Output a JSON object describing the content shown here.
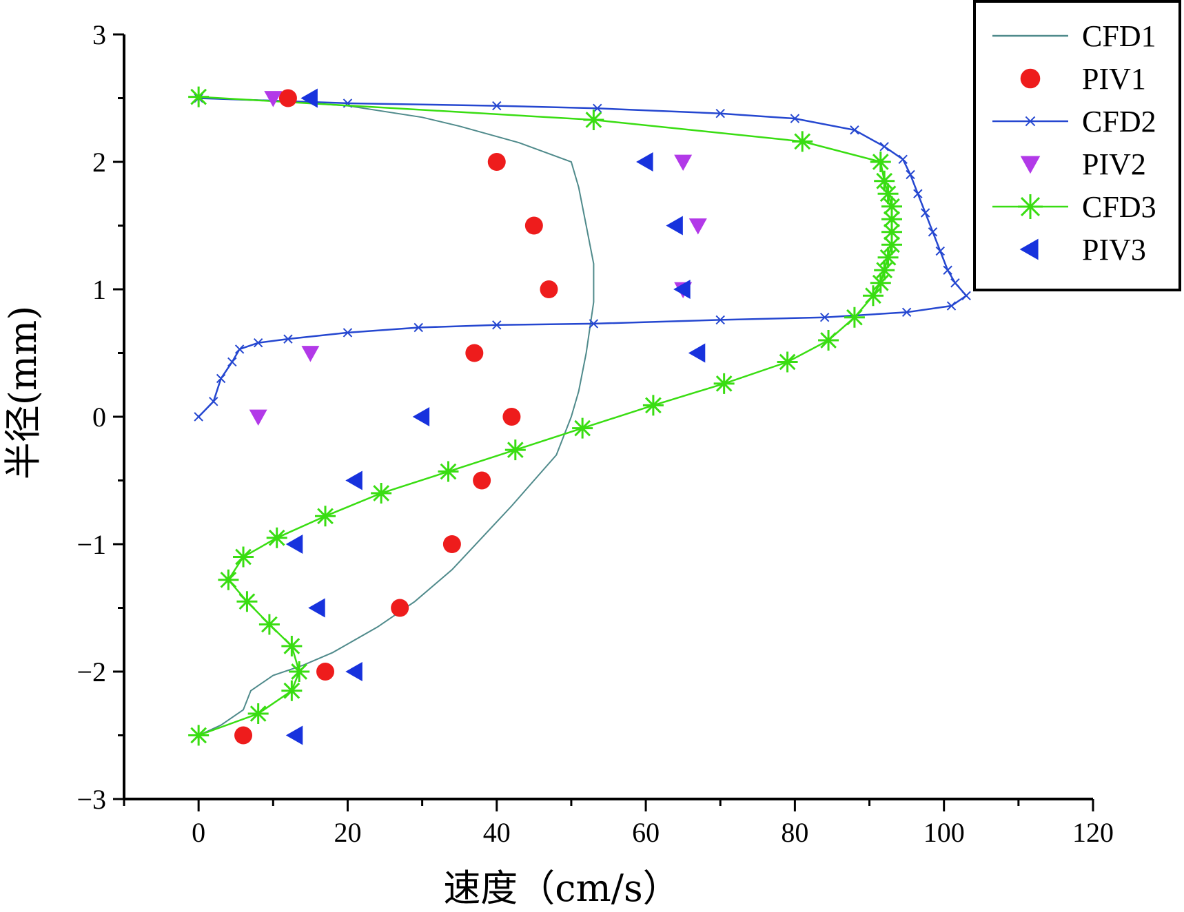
{
  "chart_data": {
    "type": "scatter",
    "title": "",
    "xlabel": "速度（cm/s）",
    "ylabel": "半径(mm)",
    "xlim": [
      -10,
      120
    ],
    "ylim": [
      -3,
      3
    ],
    "xticks": [
      0,
      20,
      40,
      60,
      80,
      100,
      120
    ],
    "yticks": [
      -3,
      -2,
      -1,
      0,
      1,
      2,
      3
    ],
    "xtick_labels": [
      "0",
      "20",
      "40",
      "60",
      "80",
      "100",
      "120"
    ],
    "ytick_labels": [
      "−3",
      "−2",
      "−1",
      "0",
      "1",
      "2",
      "3"
    ],
    "grid": false,
    "legend_position": "top-right",
    "series": [
      {
        "name": "CFD1",
        "kind": "line",
        "color": "#4f8a8b",
        "points": [
          [
            0,
            2.5
          ],
          [
            10,
            2.48
          ],
          [
            20,
            2.44
          ],
          [
            30,
            2.35
          ],
          [
            35,
            2.28
          ],
          [
            43,
            2.15
          ],
          [
            50,
            2.0
          ],
          [
            51,
            1.8
          ],
          [
            52,
            1.5
          ],
          [
            53,
            1.2
          ],
          [
            53,
            0.9
          ],
          [
            52.5,
            0.7
          ],
          [
            52,
            0.5
          ],
          [
            51,
            0.2
          ],
          [
            50,
            0.0
          ],
          [
            48,
            -0.3
          ],
          [
            45,
            -0.5
          ],
          [
            42,
            -0.7
          ],
          [
            38,
            -0.95
          ],
          [
            34,
            -1.2
          ],
          [
            29,
            -1.45
          ],
          [
            24,
            -1.65
          ],
          [
            18,
            -1.85
          ],
          [
            14,
            -1.95
          ],
          [
            10,
            -2.03
          ],
          [
            7,
            -2.15
          ],
          [
            6,
            -2.3
          ],
          [
            3,
            -2.42
          ],
          [
            0,
            -2.5
          ]
        ]
      },
      {
        "name": "PIV1",
        "kind": "scatter",
        "marker": "circle",
        "color": "#ee1c1c",
        "points": [
          [
            12,
            2.5
          ],
          [
            40,
            2.0
          ],
          [
            45,
            1.5
          ],
          [
            47,
            1.0
          ],
          [
            37,
            0.5
          ],
          [
            42,
            0.0
          ],
          [
            38,
            -0.5
          ],
          [
            34,
            -1.0
          ],
          [
            27,
            -1.5
          ],
          [
            17,
            -2.0
          ],
          [
            6,
            -2.5
          ]
        ]
      },
      {
        "name": "CFD2",
        "kind": "line-markers",
        "marker": "x",
        "color": "#2547d0",
        "points": [
          [
            0,
            2.5
          ],
          [
            20,
            2.46
          ],
          [
            40,
            2.44
          ],
          [
            53.5,
            2.42
          ],
          [
            70,
            2.38
          ],
          [
            80,
            2.34
          ],
          [
            88,
            2.25
          ],
          [
            92,
            2.12
          ],
          [
            94.5,
            2.02
          ],
          [
            95.5,
            1.9
          ],
          [
            96.5,
            1.75
          ],
          [
            97.5,
            1.6
          ],
          [
            98.5,
            1.45
          ],
          [
            99.5,
            1.3
          ],
          [
            100.5,
            1.15
          ],
          [
            101.5,
            1.05
          ],
          [
            103,
            0.95
          ],
          [
            101,
            0.87
          ],
          [
            95,
            0.82
          ],
          [
            84,
            0.78
          ],
          [
            70,
            0.76
          ],
          [
            53,
            0.73
          ],
          [
            40,
            0.72
          ],
          [
            29.5,
            0.7
          ],
          [
            20,
            0.66
          ],
          [
            12,
            0.61
          ],
          [
            8,
            0.58
          ],
          [
            5.5,
            0.53
          ],
          [
            4.5,
            0.43
          ],
          [
            3,
            0.3
          ],
          [
            2,
            0.12
          ],
          [
            0,
            0.0
          ]
        ]
      },
      {
        "name": "PIV2",
        "kind": "scatter",
        "marker": "triangle-down",
        "color": "#b239e8",
        "points": [
          [
            10,
            2.5
          ],
          [
            65,
            2.0
          ],
          [
            67,
            1.5
          ],
          [
            65,
            1.0
          ],
          [
            15,
            0.5
          ],
          [
            8,
            0.0
          ]
        ]
      },
      {
        "name": "CFD3",
        "kind": "line-markers",
        "marker": "asterisk",
        "color": "#39dd12",
        "points": [
          [
            0,
            2.51
          ],
          [
            53,
            2.33
          ],
          [
            81,
            2.16
          ],
          [
            91.5,
            2.0
          ],
          [
            92,
            1.85
          ],
          [
            92.5,
            1.75
          ],
          [
            93,
            1.65
          ],
          [
            93,
            1.55
          ],
          [
            93,
            1.45
          ],
          [
            93,
            1.35
          ],
          [
            92.5,
            1.25
          ],
          [
            92,
            1.15
          ],
          [
            91.5,
            1.05
          ],
          [
            90.5,
            0.95
          ],
          [
            88,
            0.78
          ],
          [
            84.5,
            0.6
          ],
          [
            79,
            0.43
          ],
          [
            70.5,
            0.26
          ],
          [
            61,
            0.09
          ],
          [
            51.5,
            -0.09
          ],
          [
            42.5,
            -0.26
          ],
          [
            33.5,
            -0.43
          ],
          [
            24.5,
            -0.6
          ],
          [
            17,
            -0.78
          ],
          [
            10.5,
            -0.95
          ],
          [
            6,
            -1.1
          ],
          [
            4,
            -1.28
          ],
          [
            6.5,
            -1.45
          ],
          [
            9.5,
            -1.63
          ],
          [
            12.5,
            -1.8
          ],
          [
            13.5,
            -2.0
          ],
          [
            12.5,
            -2.15
          ],
          [
            8,
            -2.33
          ],
          [
            0,
            -2.5
          ]
        ]
      },
      {
        "name": "PIV3",
        "kind": "scatter",
        "marker": "triangle-left",
        "color": "#1732dd",
        "points": [
          [
            15,
            2.5
          ],
          [
            60,
            2.0
          ],
          [
            64,
            1.5
          ],
          [
            65,
            1.0
          ],
          [
            67,
            0.5
          ],
          [
            30,
            0.0
          ],
          [
            21,
            -0.5
          ],
          [
            13,
            -1.0
          ],
          [
            16,
            -1.5
          ],
          [
            21,
            -2.0
          ],
          [
            13,
            -2.5
          ]
        ]
      }
    ]
  }
}
